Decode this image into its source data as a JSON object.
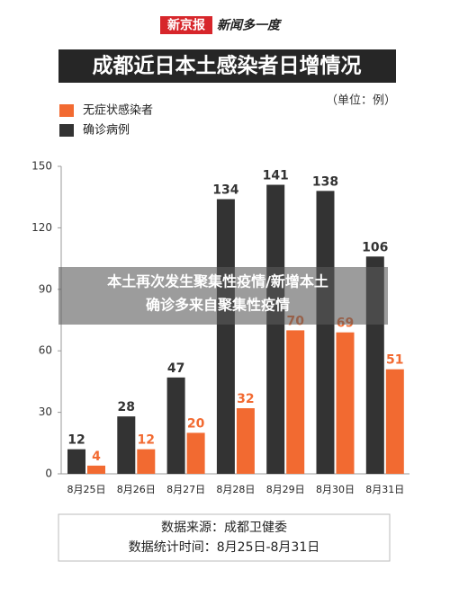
{
  "chart_data": {
    "type": "bar",
    "brand": "新京报",
    "slogan": "新闻多一度",
    "title": "成都近日本土感染者日增情况",
    "unit_note": "（单位：例）",
    "categories": [
      "8月25日",
      "8月26日",
      "8月27日",
      "8月28日",
      "8月29日",
      "8月30日",
      "8月31日"
    ],
    "series": [
      {
        "name": "确诊病例",
        "color": "#333333",
        "values": [
          12,
          28,
          47,
          134,
          141,
          138,
          106
        ]
      },
      {
        "name": "无症状感染者",
        "color": "#f26a31",
        "values": [
          4,
          12,
          20,
          32,
          70,
          69,
          51
        ]
      }
    ],
    "legend_order": [
      1,
      0
    ],
    "ylim": [
      0,
      150
    ],
    "yticks": [
      0,
      30,
      60,
      90,
      120,
      150
    ],
    "grid": false,
    "caption": [
      "本土再次发生聚集性疫情/新增本土",
      "确诊多来自聚集性疫情"
    ],
    "notes": [
      "数据来源：成都卫健委",
      "数据统计时间：8月25日-8月31日"
    ]
  }
}
